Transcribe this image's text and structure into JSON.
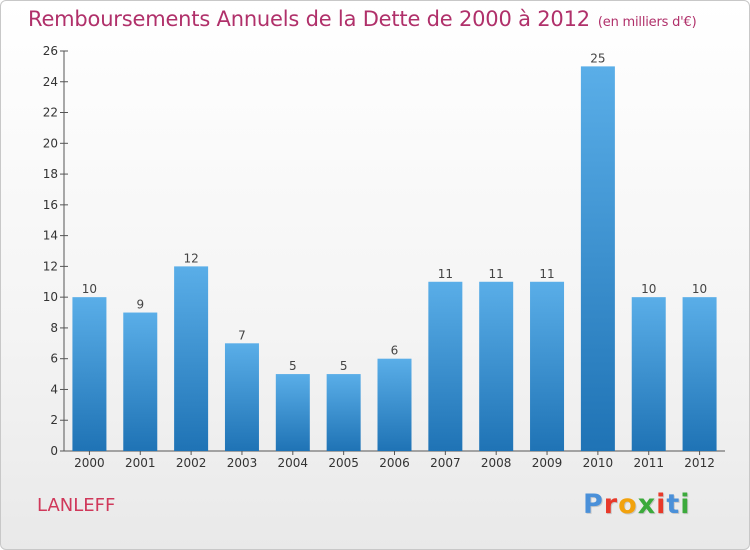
{
  "chart_data": {
    "type": "bar",
    "title": "Remboursements Annuels de la Dette de 2000 à 2012",
    "unit": "(en milliers d'€)",
    "categories": [
      "2000",
      "2001",
      "2002",
      "2003",
      "2004",
      "2005",
      "2006",
      "2007",
      "2008",
      "2009",
      "2010",
      "2011",
      "2012"
    ],
    "values": [
      10,
      9,
      12,
      7,
      5,
      5,
      6,
      11,
      11,
      11,
      25,
      10,
      10
    ],
    "ylim": [
      0,
      26
    ],
    "yticks": [
      0,
      2,
      4,
      6,
      8,
      10,
      12,
      14,
      16,
      18,
      20,
      22,
      24,
      26
    ],
    "grid": false,
    "legend": "none",
    "bar_color_top": "#5aaee8",
    "bar_color_bottom": "#1f73b5"
  },
  "footer": {
    "commune": "LANLEFF",
    "brand": "Proxiti",
    "brand_colors": [
      "#4a90d9",
      "#e8392a",
      "#f2a20d",
      "#3caa3c",
      "#e8392a",
      "#4a90d9",
      "#3caa3c"
    ]
  },
  "colors": {
    "title": "#b0306a",
    "commune": "#d0385a",
    "axis": "#555555"
  }
}
